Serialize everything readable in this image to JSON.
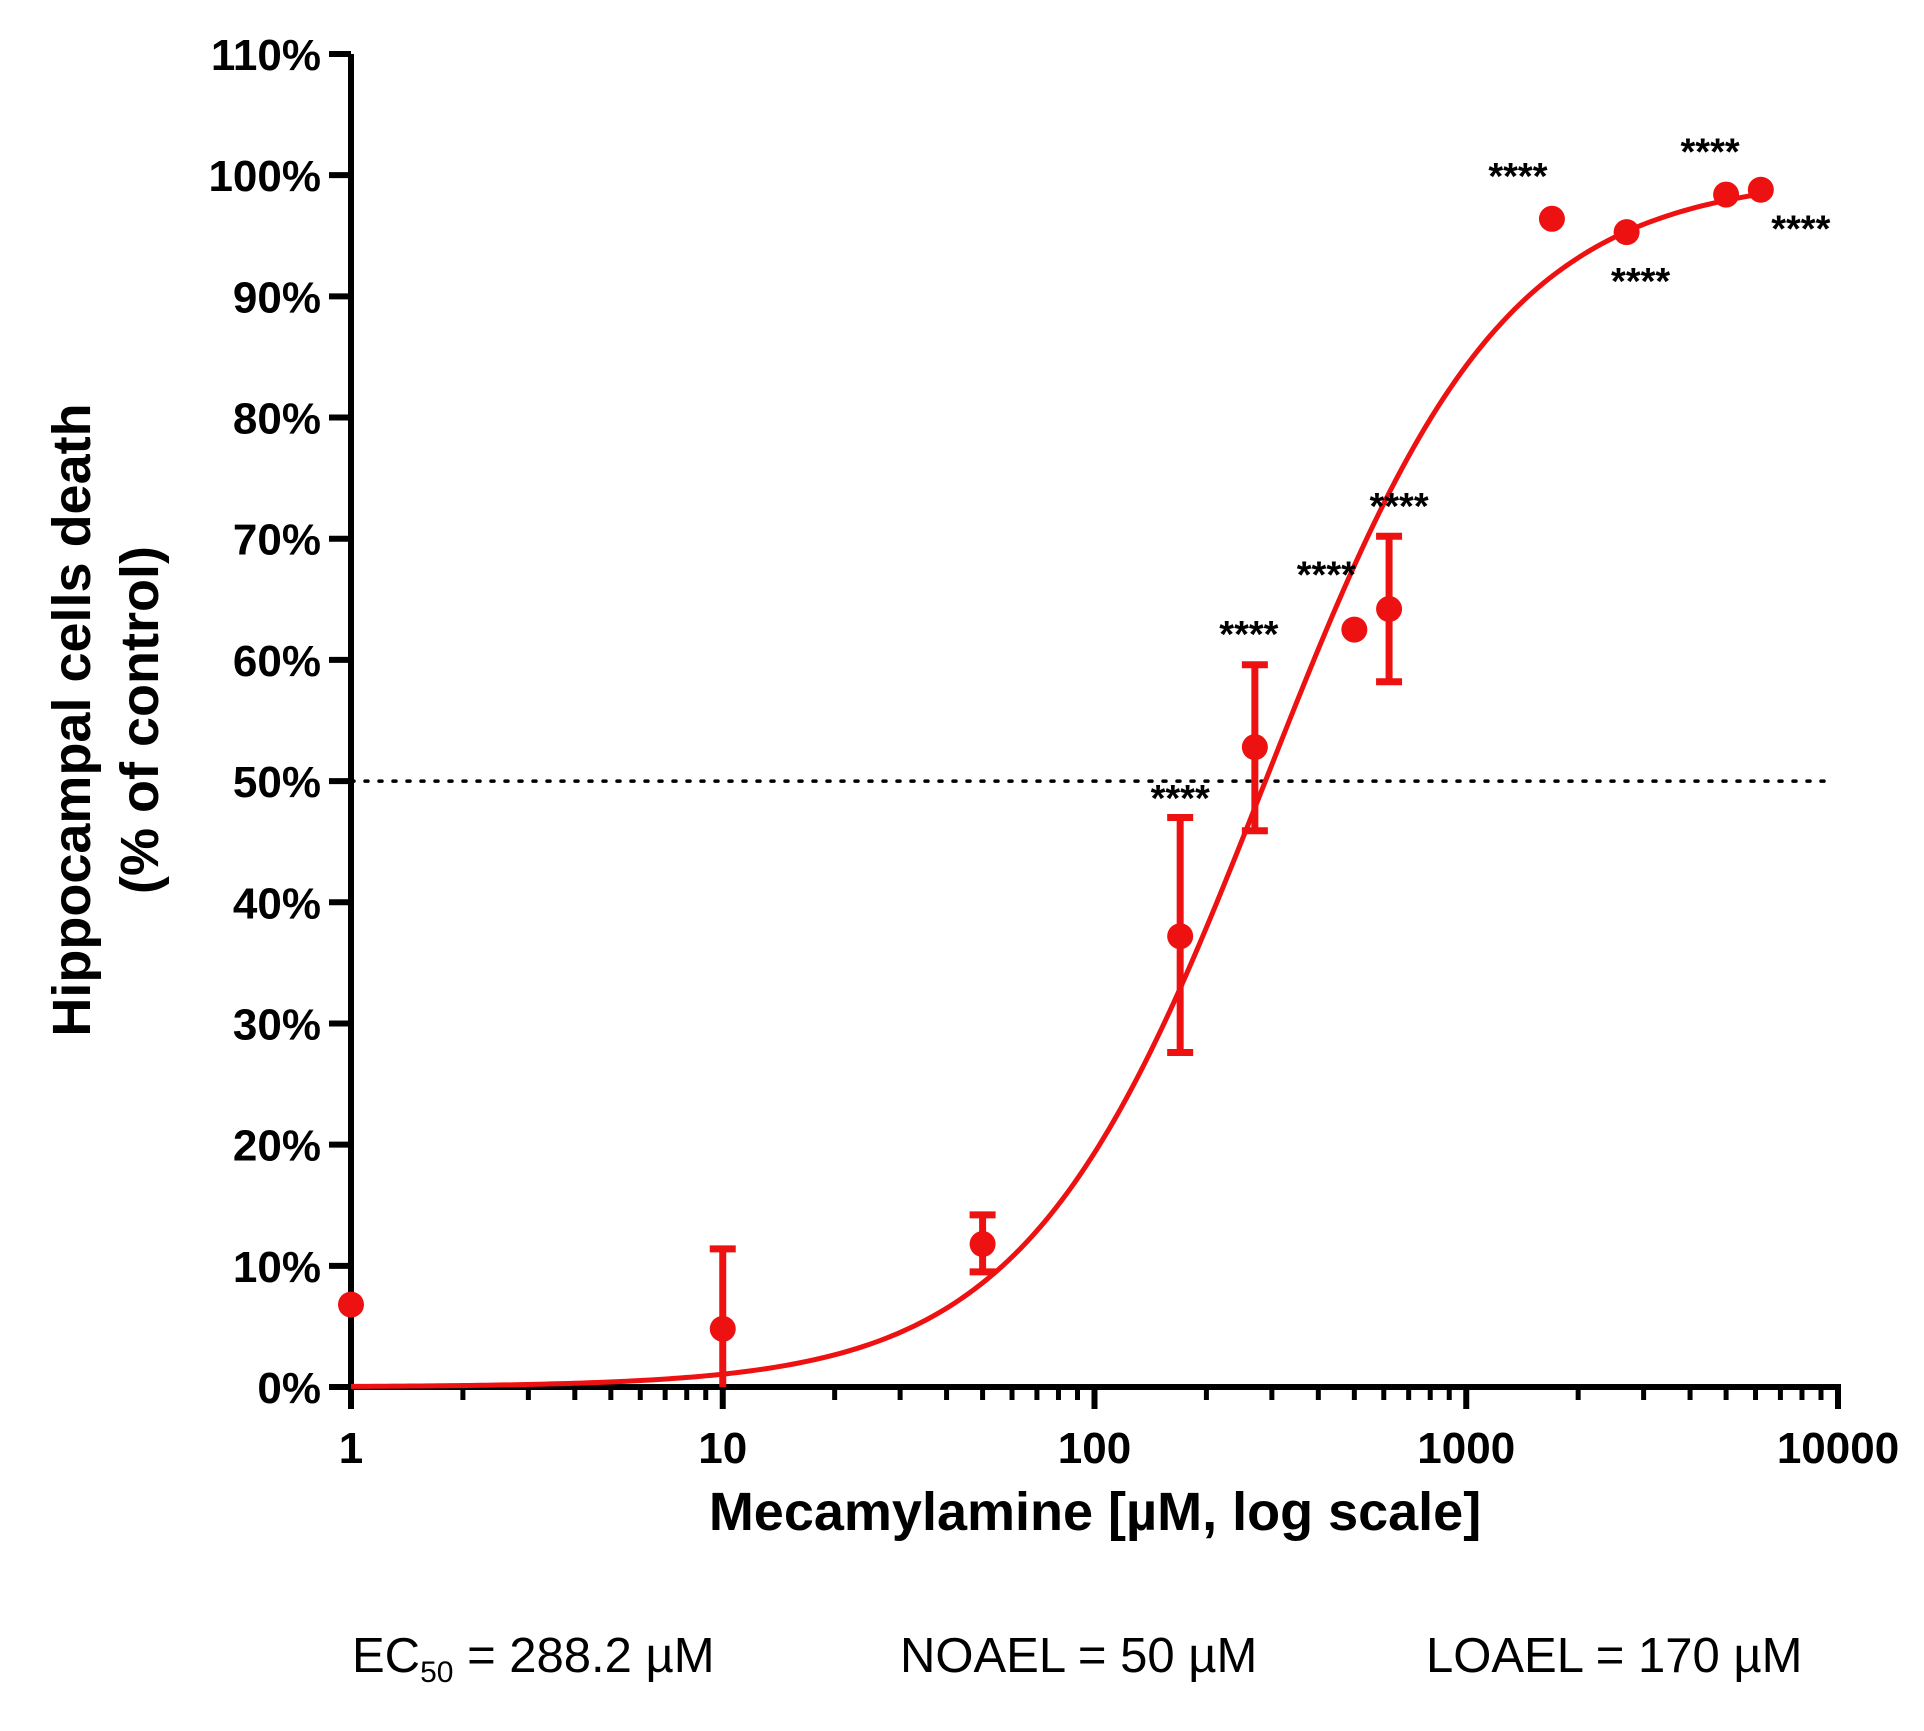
{
  "chart_data": {
    "type": "scatter",
    "xlabel": "Mecamylamine [µM, log scale]",
    "ylabel_line1": "Hippocampal cells death",
    "ylabel_line2": "(% of control)",
    "x_scale": "log",
    "xlim": [
      1,
      10000
    ],
    "ylim": [
      0,
      110
    ],
    "x_ticks": [
      {
        "value": 1,
        "label": "1"
      },
      {
        "value": 10,
        "label": "10"
      },
      {
        "value": 100,
        "label": "100"
      },
      {
        "value": 1000,
        "label": "1000"
      },
      {
        "value": 10000,
        "label": "10000"
      }
    ],
    "y_ticks": [
      {
        "value": 0,
        "label": "0%"
      },
      {
        "value": 10,
        "label": "10%"
      },
      {
        "value": 20,
        "label": "20%"
      },
      {
        "value": 30,
        "label": "30%"
      },
      {
        "value": 40,
        "label": "40%"
      },
      {
        "value": 50,
        "label": "50%"
      },
      {
        "value": 60,
        "label": "60%"
      },
      {
        "value": 70,
        "label": "70%"
      },
      {
        "value": 80,
        "label": "80%"
      },
      {
        "value": 90,
        "label": "90%"
      },
      {
        "value": 100,
        "label": "100%"
      },
      {
        "value": 110,
        "label": "110%"
      }
    ],
    "reference_line": {
      "y": 50,
      "style": "dotted"
    },
    "series": [
      {
        "name": "Mecamylamine",
        "color": "#ee1111",
        "points": [
          {
            "x": 1,
            "y": 6.8,
            "err": null,
            "label": ""
          },
          {
            "x": 10,
            "y": 4.8,
            "err": [
              0,
              11.4
            ],
            "label": ""
          },
          {
            "x": 50,
            "y": 11.8,
            "err": [
              9.5,
              14.2
            ],
            "label": ""
          },
          {
            "x": 170,
            "y": 37.2,
            "err": [
              27.6,
              47.0
            ],
            "label": "****"
          },
          {
            "x": 270,
            "y": 52.8,
            "err": [
              45.9,
              59.6
            ],
            "label": "****"
          },
          {
            "x": 500,
            "y": 62.5,
            "err": null,
            "label": "****"
          },
          {
            "x": 620,
            "y": 64.2,
            "err": [
              58.2,
              70.2
            ],
            "label": "****"
          },
          {
            "x": 1700,
            "y": 96.4,
            "err": null,
            "label": "****"
          },
          {
            "x": 2700,
            "y": 95.3,
            "err": null,
            "label": "****"
          },
          {
            "x": 5000,
            "y": 98.4,
            "err": null,
            "label": "****"
          },
          {
            "x": 6200,
            "y": 98.8,
            "err": null,
            "label": "****"
          }
        ]
      }
    ],
    "fit": {
      "type": "sigmoid",
      "ec50": 288.2,
      "hill": 1.35,
      "bottom": 0,
      "top": 100,
      "x_range": [
        1,
        6200
      ]
    },
    "annotations": {
      "ec50_prefix": "EC",
      "ec50_sub": "50",
      "ec50_rest": " = 288.2 µM",
      "noael": "NOAEL = 50 µM",
      "loael": "LOAEL = 170 µM"
    }
  }
}
